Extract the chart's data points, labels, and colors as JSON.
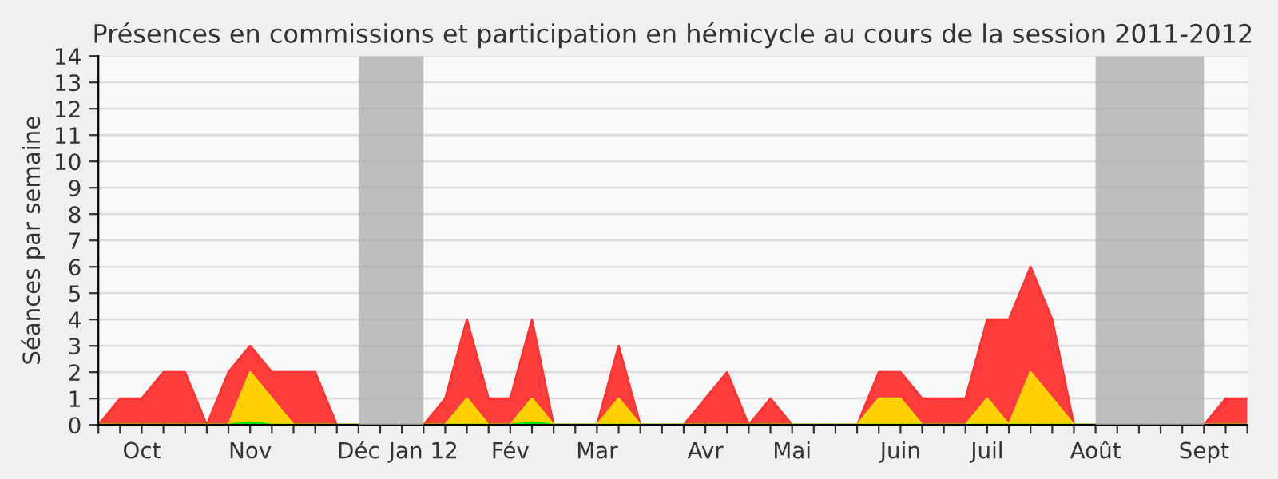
{
  "chart_data": {
    "type": "area",
    "title": "Présences en commissions et participation en hémicycle au cours de la session 2011-2012",
    "ylabel": "Séances par semaine",
    "categories": [
      null,
      null,
      "Oct",
      null,
      null,
      null,
      null,
      "Nov",
      null,
      null,
      null,
      null,
      "Déc",
      null,
      null,
      "Jan 12",
      null,
      null,
      null,
      "Fév",
      null,
      null,
      null,
      "Mar",
      null,
      null,
      null,
      null,
      "Avr",
      null,
      null,
      null,
      "Mai",
      null,
      null,
      null,
      null,
      "Juin",
      null,
      null,
      null,
      "Juil",
      null,
      null,
      null,
      null,
      "Août",
      null,
      null,
      null,
      null,
      "Sept",
      null,
      null
    ],
    "series": [
      {
        "color": "#ff3333",
        "values": [
          0,
          1,
          1,
          2,
          2,
          0,
          2,
          3,
          2,
          2,
          2,
          0,
          0,
          0,
          0,
          0,
          1,
          4,
          1,
          1,
          4,
          0,
          0,
          0,
          3,
          0,
          0,
          0,
          1,
          2,
          0,
          1,
          0,
          0,
          0,
          0,
          2,
          2,
          1,
          1,
          1,
          4,
          4,
          6,
          4,
          0,
          0,
          0,
          0,
          0,
          0,
          0,
          1,
          1
        ]
      },
      {
        "color": "#ffd700",
        "values": [
          0,
          0,
          0,
          0,
          0,
          0,
          0,
          2,
          1,
          0,
          0,
          0,
          0,
          0,
          0,
          0,
          0,
          1,
          0,
          0,
          1,
          0,
          0,
          0,
          1,
          0,
          0,
          0,
          0,
          0,
          0,
          0,
          0,
          0,
          0,
          0,
          1,
          1,
          0,
          0,
          0,
          1,
          0,
          2,
          1,
          0,
          0,
          0,
          0,
          0,
          0,
          0,
          0,
          0
        ]
      },
      {
        "color": "#00e000",
        "values": [
          0,
          0,
          0,
          0,
          0,
          0,
          0,
          0.1,
          0,
          0,
          0,
          0,
          0,
          0,
          0,
          0,
          0,
          0,
          0,
          0,
          0.1,
          0,
          0,
          0,
          0,
          0,
          0,
          0,
          0,
          0,
          0,
          0,
          0,
          0,
          0,
          0,
          0,
          0,
          0,
          0,
          0,
          0,
          0,
          0,
          0,
          0,
          0,
          0,
          0,
          0,
          0,
          0,
          0,
          0
        ]
      }
    ],
    "ylim": [
      0,
      14
    ],
    "yticks": [
      0,
      1,
      2,
      3,
      4,
      5,
      6,
      7,
      8,
      9,
      10,
      11,
      12,
      13,
      14
    ],
    "bands": [
      {
        "axis": "x",
        "from": "Déc",
        "to": "Jan 12",
        "color": "#aaaaaa"
      },
      {
        "axis": "x",
        "from": "Août",
        "to": "Sept",
        "color": "#aaaaaa"
      }
    ],
    "grid": "y",
    "legend": false
  }
}
